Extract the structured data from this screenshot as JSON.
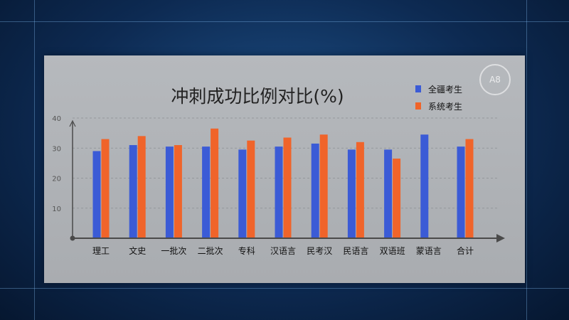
{
  "badge": "A8",
  "chart_data": {
    "type": "bar",
    "title": "冲刺成功比例对比(%)",
    "categories": [
      "理工",
      "文史",
      "一批次",
      "二批次",
      "专科",
      "汉语言",
      "民考汉",
      "民语言",
      "双语班",
      "蒙语言",
      "合计"
    ],
    "series": [
      {
        "name": "全疆考生",
        "values": [
          29,
          31,
          30.5,
          30.5,
          29.5,
          30.5,
          31.5,
          29.5,
          29.5,
          34.5,
          30.5
        ]
      },
      {
        "name": "系统考生",
        "values": [
          33,
          34,
          31,
          36.5,
          32.5,
          33.5,
          34.5,
          32,
          26.5,
          null,
          33
        ]
      }
    ],
    "yticks": [
      10,
      20,
      30,
      40
    ],
    "ylim": [
      0,
      40
    ],
    "grid": true,
    "legend_position": "top-right",
    "colors": {
      "series_0": "#3b5bd6",
      "series_1": "#f0642a",
      "axis": "#4a4a4a"
    }
  }
}
